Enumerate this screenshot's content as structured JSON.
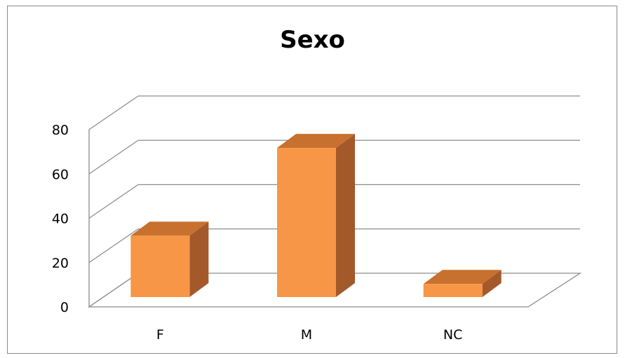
{
  "chart_data": {
    "type": "bar",
    "style": "3d-column",
    "title": "Sexo",
    "xlabel": "",
    "ylabel": "",
    "categories": [
      "F",
      "M",
      "NC"
    ],
    "values": [
      28,
      68,
      6
    ],
    "ylim": [
      0,
      80
    ],
    "yticks": [
      "0",
      "20",
      "40",
      "60",
      "80"
    ],
    "grid": true,
    "legend": "none",
    "colors": {
      "bar_front": "#F79646",
      "bar_side": "#A3592A",
      "bar_top": "#C8702E",
      "grid": "#8c8c8c",
      "frame": "#8a8a8a"
    }
  }
}
